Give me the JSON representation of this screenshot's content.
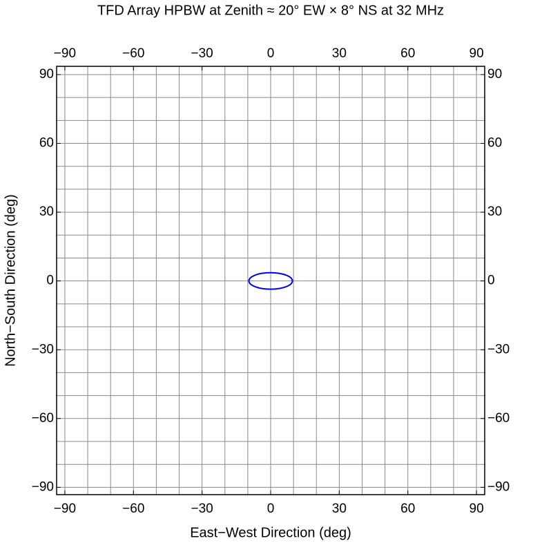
{
  "chart_data": {
    "type": "ellipse",
    "title": "TFD Array HPBW at Zenith ≈ 20° EW × 8° NS at 32 MHz",
    "x_label": "East−West Direction (deg)",
    "y_label": "North−South Direction (deg)",
    "xlim": [
      -93.6,
      93.6
    ],
    "ylim": [
      -93.2,
      93.6
    ],
    "xticks": [
      {
        "value": -90,
        "label": "−90"
      },
      {
        "value": -60,
        "label": "−60"
      },
      {
        "value": -30,
        "label": "−30"
      },
      0,
      30,
      60,
      90
    ],
    "yticks": [
      {
        "value": -90,
        "label": "−90"
      },
      {
        "value": -60,
        "label": "−60"
      },
      {
        "value": -30,
        "label": "−30"
      },
      0,
      30,
      60,
      90
    ],
    "xgrid": [
      -90,
      -80,
      -70,
      -60,
      -50,
      -40,
      -30,
      -20,
      -10,
      0,
      10,
      20,
      30,
      40,
      50,
      60,
      70,
      80,
      90
    ],
    "ygrid": [
      -90,
      -80,
      -70,
      -60,
      -50,
      -40,
      -30,
      -20,
      -10,
      0,
      10,
      20,
      30,
      40,
      50,
      60,
      70,
      80,
      90
    ],
    "grid": true,
    "ellipses": [
      {
        "color": "#0000ff",
        "cx": 0,
        "cy": 0,
        "rx": 9.5,
        "ry": 3.6
      }
    ]
  }
}
